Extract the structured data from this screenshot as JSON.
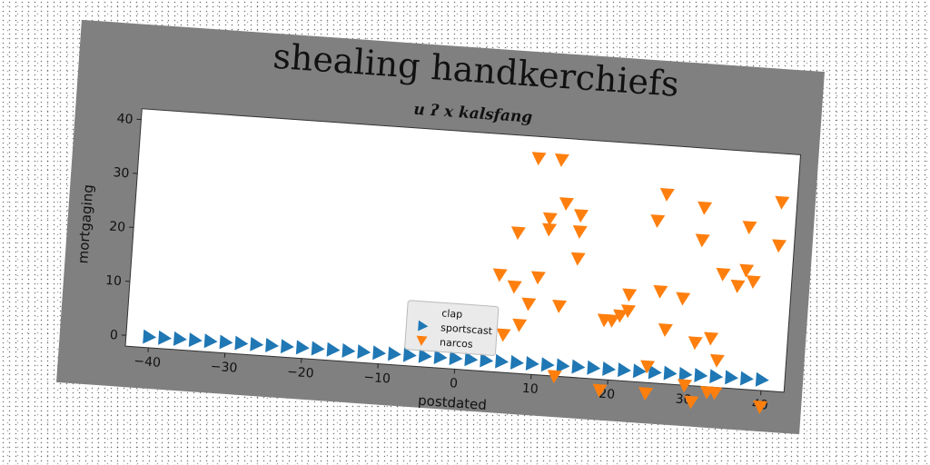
{
  "chart_data": {
    "type": "scatter",
    "title": "shealing handkerchiefs",
    "subtitle": "u ʔ x kalsfang",
    "xlabel": "postdated",
    "ylabel": "mortgaging",
    "xlim": [
      -43,
      43
    ],
    "ylim": [
      -2,
      42
    ],
    "xticks": [
      -40,
      -30,
      -20,
      -10,
      0,
      10,
      20,
      30,
      40
    ],
    "yticks": [
      0,
      10,
      20,
      30,
      40
    ],
    "grid": false,
    "legend_position": "lower-center",
    "legend": [
      "clap",
      "sportscast",
      "narcos"
    ],
    "series": [
      {
        "name": "clap",
        "color": "#1f77b4",
        "marker": "none",
        "points": []
      },
      {
        "name": "sportscast",
        "color": "#1f77b4",
        "marker": "triangle-right",
        "points": [
          [
            -40,
            0
          ],
          [
            -38,
            0
          ],
          [
            -36,
            0
          ],
          [
            -34,
            0
          ],
          [
            -32,
            0
          ],
          [
            -30,
            0
          ],
          [
            -28,
            0
          ],
          [
            -26,
            0
          ],
          [
            -24,
            0
          ],
          [
            -22,
            0
          ],
          [
            -20,
            0
          ],
          [
            -18,
            0
          ],
          [
            -16,
            0
          ],
          [
            -14,
            0
          ],
          [
            -12,
            0
          ],
          [
            -10,
            0
          ],
          [
            -8,
            0
          ],
          [
            -6,
            0
          ],
          [
            -4,
            0
          ],
          [
            -2,
            0
          ],
          [
            0,
            0
          ],
          [
            2,
            0
          ],
          [
            4,
            0
          ],
          [
            6,
            0
          ],
          [
            8,
            0
          ],
          [
            10,
            0
          ],
          [
            12,
            0
          ],
          [
            14,
            0
          ],
          [
            16,
            0
          ],
          [
            18,
            0
          ],
          [
            20,
            0
          ],
          [
            22,
            0
          ],
          [
            24,
            0
          ],
          [
            26,
            0
          ],
          [
            28,
            0
          ],
          [
            30,
            0
          ],
          [
            32,
            0
          ],
          [
            34,
            0
          ],
          [
            36,
            0
          ],
          [
            38,
            0
          ],
          [
            40,
            0
          ]
        ]
      },
      {
        "name": "narcos",
        "color": "#ff7f0e",
        "marker": "triangle-down",
        "points": [
          [
            9,
            38
          ],
          [
            12,
            38
          ],
          [
            13,
            30
          ],
          [
            11,
            27
          ],
          [
            15,
            28
          ],
          [
            11,
            25
          ],
          [
            7,
            24
          ],
          [
            15,
            25
          ],
          [
            15,
            20
          ],
          [
            5,
            16
          ],
          [
            10,
            16
          ],
          [
            7,
            14
          ],
          [
            9,
            11
          ],
          [
            13,
            11
          ],
          [
            8,
            7
          ],
          [
            6,
            5
          ],
          [
            19,
            9
          ],
          [
            21,
            10
          ],
          [
            20,
            9
          ],
          [
            22,
            11
          ],
          [
            22,
            14
          ],
          [
            25,
            28
          ],
          [
            26,
            33
          ],
          [
            31,
            31
          ],
          [
            31,
            25
          ],
          [
            34,
            19
          ],
          [
            37,
            28
          ],
          [
            37,
            20
          ],
          [
            36,
            17
          ],
          [
            38,
            18
          ],
          [
            41,
            33
          ],
          [
            41,
            25
          ],
          [
            29,
            14
          ],
          [
            26,
            15
          ],
          [
            27,
            8
          ],
          [
            31,
            6
          ],
          [
            33,
            7
          ],
          [
            34,
            3
          ],
          [
            25,
            1
          ],
          [
            13,
            -2
          ],
          [
            19,
            -4
          ],
          [
            25,
            -4
          ],
          [
            30,
            -2
          ],
          [
            31,
            -5
          ],
          [
            33,
            -3
          ],
          [
            34,
            -3
          ],
          [
            40,
            -5
          ]
        ]
      }
    ]
  }
}
